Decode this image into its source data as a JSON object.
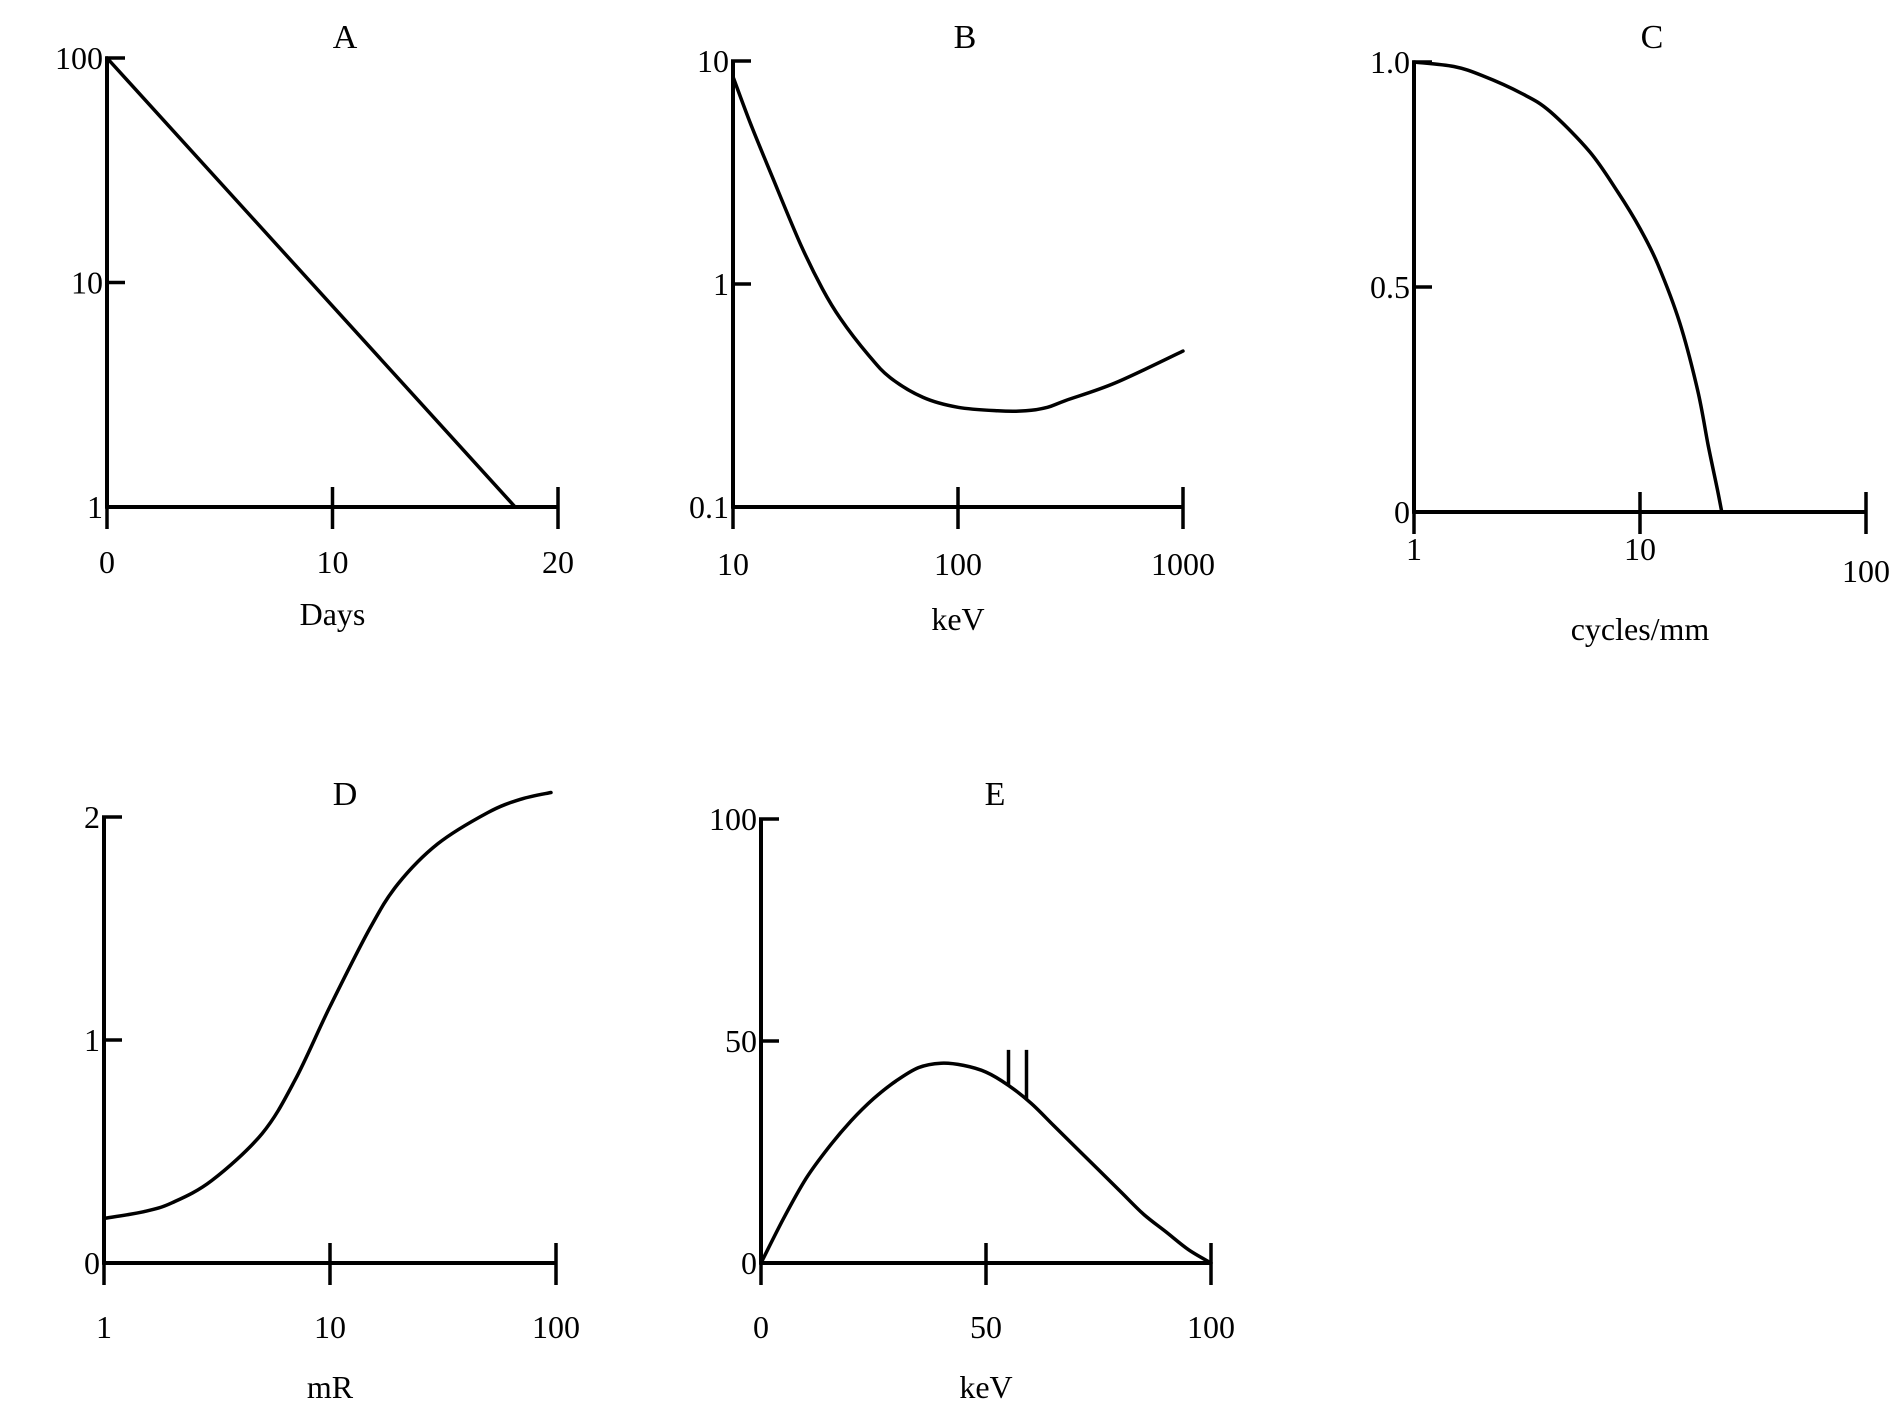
{
  "chart_data": [
    {
      "panel": "A",
      "type": "line",
      "title": "A",
      "xlabel": "Days",
      "ylabel": "",
      "x_scale": "linear",
      "y_scale": "log",
      "xlim": [
        0,
        20
      ],
      "ylim": [
        1,
        100
      ],
      "x_ticks": [
        0,
        10,
        20
      ],
      "x_tick_labels": [
        "0",
        "10",
        "20"
      ],
      "y_ticks": [
        1,
        10,
        100
      ],
      "y_tick_labels": [
        "1",
        "10",
        "100"
      ],
      "grid": false,
      "series": [
        {
          "x": [
            0,
            18.1
          ],
          "y": [
            100,
            1
          ]
        }
      ]
    },
    {
      "panel": "B",
      "type": "line",
      "title": "B",
      "xlabel": "keV",
      "ylabel": "",
      "x_scale": "log",
      "y_scale": "log",
      "xlim": [
        10,
        1000
      ],
      "ylim": [
        0.1,
        10
      ],
      "x_ticks": [
        10,
        100,
        1000
      ],
      "x_tick_labels": [
        "10",
        "100",
        "1000"
      ],
      "y_ticks": [
        0.1,
        1,
        10
      ],
      "y_tick_labels": [
        "0.1",
        "1",
        "10"
      ],
      "grid": false,
      "series": [
        {
          "x": [
            10,
            12,
            15,
            20,
            25,
            30,
            40,
            50,
            70,
            100,
            150,
            200,
            250,
            300,
            500,
            1000
          ],
          "y": [
            8.5,
            5.2,
            3.0,
            1.5,
            0.95,
            0.7,
            0.48,
            0.38,
            0.31,
            0.28,
            0.27,
            0.27,
            0.28,
            0.3,
            0.36,
            0.5
          ]
        }
      ]
    },
    {
      "panel": "C",
      "type": "line",
      "title": "C",
      "xlabel": "cycles/mm",
      "ylabel": "",
      "x_scale": "log",
      "y_scale": "linear",
      "xlim": [
        1,
        100
      ],
      "ylim": [
        0,
        1.0
      ],
      "x_ticks": [
        1,
        10,
        100
      ],
      "x_tick_labels": [
        "1",
        "10",
        "100"
      ],
      "y_ticks": [
        0,
        0.5,
        1.0
      ],
      "y_tick_labels": [
        "0",
        "0.5",
        "1.0"
      ],
      "grid": false,
      "series": [
        {
          "x": [
            1,
            1.5,
            2,
            3,
            4,
            6,
            8,
            10,
            12,
            15,
            18,
            20,
            22,
            23
          ],
          "y": [
            1.0,
            0.99,
            0.97,
            0.93,
            0.89,
            0.8,
            0.71,
            0.63,
            0.55,
            0.42,
            0.27,
            0.15,
            0.05,
            0
          ]
        }
      ]
    },
    {
      "panel": "D",
      "type": "line",
      "title": "D",
      "xlabel": "mR",
      "ylabel": "",
      "x_scale": "log",
      "y_scale": "linear",
      "xlim": [
        1,
        100
      ],
      "ylim": [
        0,
        2
      ],
      "x_ticks": [
        1,
        10,
        100
      ],
      "x_tick_labels": [
        "1",
        "10",
        "100"
      ],
      "y_ticks": [
        0,
        1,
        2
      ],
      "y_tick_labels": [
        "0",
        "1",
        "2"
      ],
      "grid": false,
      "series": [
        {
          "x": [
            1,
            1.5,
            2,
            3,
            5,
            7,
            10,
            15,
            20,
            30,
            50,
            70,
            95
          ],
          "y": [
            0.2,
            0.23,
            0.27,
            0.37,
            0.58,
            0.82,
            1.15,
            1.5,
            1.7,
            1.88,
            2.02,
            2.08,
            2.11
          ]
        }
      ]
    },
    {
      "panel": "E",
      "type": "line",
      "title": "E",
      "xlabel": "keV",
      "ylabel": "",
      "x_scale": "linear",
      "y_scale": "linear",
      "xlim": [
        0,
        100
      ],
      "ylim": [
        0,
        100
      ],
      "x_ticks": [
        0,
        50,
        100
      ],
      "x_tick_labels": [
        "0",
        "50",
        "100"
      ],
      "y_ticks": [
        0,
        50,
        100
      ],
      "y_tick_labels": [
        "0",
        "50",
        "100"
      ],
      "grid": false,
      "series": [
        {
          "x": [
            0,
            5,
            10,
            15,
            20,
            25,
            30,
            35,
            40,
            45,
            50,
            55,
            60,
            65,
            70,
            75,
            80,
            85,
            90,
            95,
            100
          ],
          "y": [
            0,
            10,
            19,
            26,
            32,
            37,
            41,
            44,
            45,
            44.5,
            43,
            40,
            36,
            31,
            26,
            21,
            16,
            11,
            7,
            3,
            0
          ]
        }
      ],
      "annotations": [
        {
          "x": 55,
          "y_from": 40,
          "y_to": 48
        },
        {
          "x": 59,
          "y_from": 37,
          "y_to": 48
        }
      ]
    }
  ]
}
